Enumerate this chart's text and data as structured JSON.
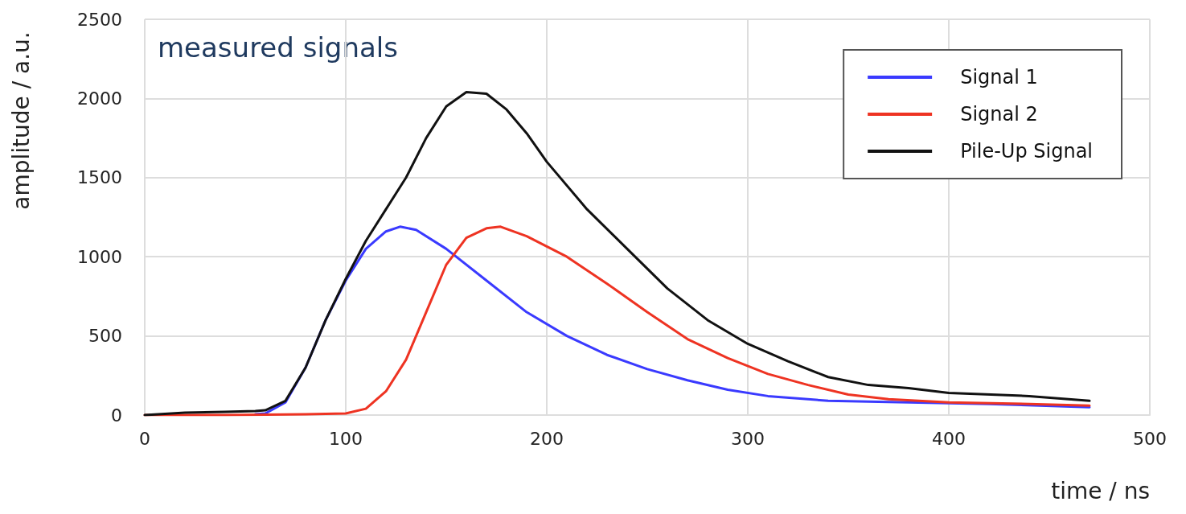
{
  "chart_data": {
    "type": "line",
    "xlabel": "time / ns",
    "ylabel": "amplitude / a.u.",
    "annotations": [
      "measured signals"
    ],
    "xlim": [
      0,
      500
    ],
    "xticks": [
      0,
      100,
      200,
      300,
      400,
      500
    ],
    "ylim": [
      0,
      2500
    ],
    "yticks": [
      0,
      500,
      {
        "value": 1000,
        "label": "1000"
      },
      {
        "value": 1500,
        "label": "1500"
      },
      {
        "value": 2000,
        "label": "2000"
      },
      {
        "value": 2500,
        "label": "2500"
      }
    ],
    "grid": true,
    "legend": "top right",
    "marker": "none",
    "line_style": "solid",
    "series": [
      {
        "name": "Signal 1",
        "color": "#3a3aff",
        "x": [
          55,
          60,
          70,
          80,
          90,
          100,
          110,
          120,
          127,
          135,
          150,
          170,
          190,
          210,
          230,
          250,
          270,
          290,
          310,
          340,
          380,
          420,
          470
        ],
        "values": [
          5,
          10,
          80,
          300,
          600,
          850,
          1050,
          1160,
          1190,
          1170,
          1050,
          850,
          650,
          500,
          380,
          290,
          220,
          160,
          120,
          90,
          80,
          70,
          50
        ]
      },
      {
        "name": "Signal 2",
        "color": "#ee3322",
        "x": [
          0,
          40,
          80,
          100,
          110,
          120,
          130,
          140,
          150,
          160,
          170,
          177,
          190,
          210,
          230,
          250,
          270,
          290,
          310,
          330,
          350,
          370,
          400,
          440,
          470
        ],
        "values": [
          0,
          0,
          5,
          10,
          40,
          150,
          350,
          650,
          950,
          1120,
          1180,
          1190,
          1130,
          1000,
          830,
          650,
          480,
          360,
          260,
          190,
          130,
          100,
          80,
          70,
          60
        ]
      },
      {
        "name": "Pile-Up Signal",
        "color": "#111111",
        "x": [
          0,
          20,
          40,
          55,
          60,
          70,
          80,
          90,
          100,
          110,
          120,
          130,
          140,
          150,
          160,
          170,
          180,
          190,
          200,
          220,
          240,
          260,
          280,
          300,
          320,
          340,
          360,
          380,
          400,
          440,
          470
        ],
        "values": [
          0,
          15,
          20,
          25,
          30,
          90,
          300,
          600,
          860,
          1100,
          1300,
          1500,
          1750,
          1950,
          2040,
          2030,
          1930,
          1780,
          1600,
          1300,
          1050,
          800,
          600,
          450,
          340,
          240,
          190,
          170,
          140,
          120,
          90
        ]
      }
    ]
  }
}
